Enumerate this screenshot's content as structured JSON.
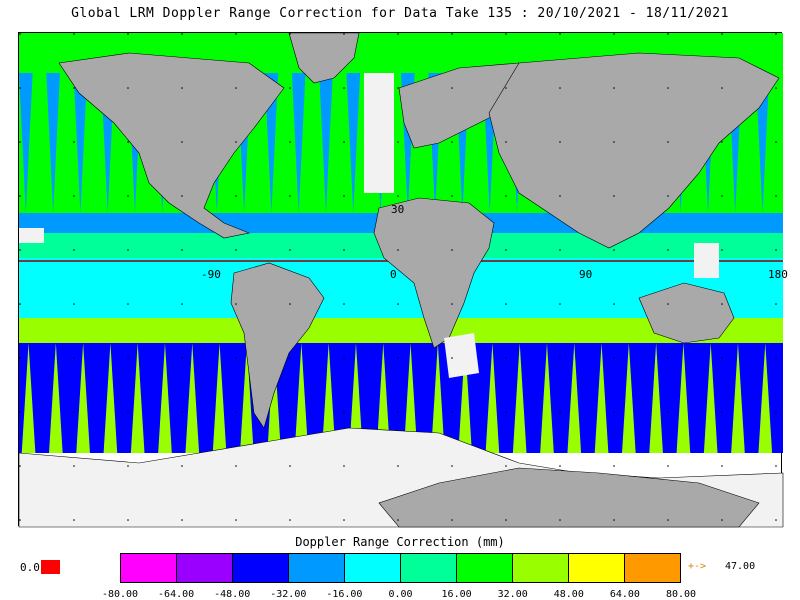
{
  "title": "Global LRM Doppler Range Correction for Data Take 135 : 20/10/2021 - 18/11/2021",
  "colorbar": {
    "title": "Doppler Range Correction (mm)",
    "tick_labels": [
      "-80.00",
      "-64.00",
      "-48.00",
      "-32.00",
      "-16.00",
      "0.00",
      "16.00",
      "32.00",
      "48.00",
      "64.00",
      "80.00"
    ],
    "colors": [
      "#ff00ff",
      "#9900ff",
      "#0000ff",
      "#0099ff",
      "#00ffff",
      "#00ff99",
      "#00ff00",
      "#99ff00",
      "#ffff00",
      "#ff9900"
    ],
    "below_label": "0.0",
    "below_color": "#ff0000",
    "above_arrow": "+->",
    "above_value": "47.00"
  },
  "map": {
    "lon_labels": [
      "-90",
      "0",
      "90",
      "180"
    ],
    "lat_labels": [
      "30"
    ],
    "land_color": "#a9a9a9",
    "ice_color": "#f2f2f2"
  }
}
